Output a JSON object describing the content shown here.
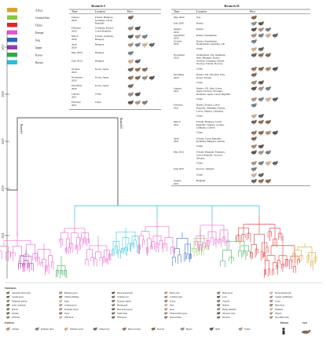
{
  "legend": [
    {
      "label": "Africa",
      "color": "#d6a32e"
    },
    {
      "label": "Central Asia",
      "color": "#8cc63f"
    },
    {
      "label": "China",
      "color": "#e0262f"
    },
    {
      "label": "Europe",
      "color": "#e655c8"
    },
    {
      "label": "Iraq",
      "color": "#2e63b8"
    },
    {
      "label": "Japan",
      "color": "#8b3fb6"
    },
    {
      "label": "Korea",
      "color": "#2eaa4a"
    },
    {
      "label": "Russia",
      "color": "#2bbfd9"
    }
  ],
  "years": [
    "2017",
    "2018",
    "2019",
    "2020",
    "2021"
  ],
  "branch_labels": [
    "Branch I",
    "Branch II"
  ],
  "table1": {
    "title": "Branch I",
    "headers": [
      "Time",
      "Location",
      "Host"
    ],
    "rows": [
      {
        "time": "January 2020",
        "location": "Poland, Hungary, Germany, Czech Republic"
      },
      {
        "time": "February 2020",
        "location": "Germany, Poland, Czech Republic"
      },
      {
        "time": "March 2020",
        "location": "Poland, Germany, Hungary"
      },
      {
        "time": "April 2020",
        "location": "Hungary"
      },
      {
        "time": "May 2020",
        "location": "Hungary"
      },
      {
        "time": "June 2020",
        "location": "Hungary"
      },
      {
        "time": "October 2020",
        "location": "Korea, Japan"
      },
      {
        "time": "November 2020",
        "location": "Korea, Japan"
      },
      {
        "time": "December 2020",
        "location": "Korea, Japan"
      },
      {
        "time": "January 2021",
        "location": "China"
      },
      {
        "time": "February 2021",
        "location": "Japan"
      }
    ]
  },
  "table2": {
    "title": "Branch II",
    "headers": [
      "Time",
      "Location",
      "Host"
    ],
    "rows": [
      {
        "time": "May 2020",
        "location": "Iraq"
      },
      {
        "time": "July 2020",
        "location": "Russia"
      },
      {
        "time": "August 2020",
        "location": "Russia"
      },
      {
        "time": "September 2020",
        "location": "Russia, Kazakhstan"
      },
      {
        "time": "October 2020",
        "location": "Russia, Kazakhstan, Netherlands, Germany, UK"
      },
      {
        "time": "",
        "location": "China"
      },
      {
        "time": "November 2020",
        "location": "Netherlands, UK, Denmark, Italy, Belgium, France, Sweden, Germany, Ireland, Norway, Poland, Norway"
      },
      {
        "time": "",
        "location": "China"
      },
      {
        "time": "December 2020",
        "location": "Russia, UK, Slovakia, Italy, Korea, Poland"
      },
      {
        "time": "",
        "location": "China"
      },
      {
        "time": "January 2021",
        "location": "Russia, UK, Italy, Korea, Spain, Norway, Slovakia, Romania, Japan, Czech Republic"
      },
      {
        "time": "",
        "location": "China"
      },
      {
        "time": "February 2021",
        "location": "Russia, Poland, Czech Republic, Belgium, Austria, Latvia, Nigeria, Lithuania"
      },
      {
        "time": "",
        "location": "China"
      },
      {
        "time": "March 2021",
        "location": "Poland, Hungary, Czech Republic, Nigeria, Croatia, Lithuania, Greece"
      },
      {
        "time": "",
        "location": "China"
      },
      {
        "time": "April 2021",
        "location": "Poland, Czech Republic, Romania, Bulgaria, Austria"
      },
      {
        "time": "",
        "location": "China"
      },
      {
        "time": "May 2021",
        "location": "Poland, Belgium, Romania, Czech Republic, Kosovo, Albania"
      },
      {
        "time": "",
        "location": "China"
      },
      {
        "time": "June 2021",
        "location": "Kosovo, Albania"
      },
      {
        "time": "",
        "location": "China"
      },
      {
        "time": "August 2021",
        "location": "Belgium"
      }
    ]
  },
  "host_legend": {
    "wild_title": "Wild birds",
    "poultry_title": "Poultries",
    "human_title": "Human",
    "seal_title": "Seal",
    "wild": [
      "Australian black swan",
      "Barnacle goose",
      "Black-headed gull",
      "Black swan",
      "Brent goose",
      "Brown-headed gull",
      "Canada goose",
      "Chilean flamingo",
      "Common teal",
      "Common eider",
      "Crow",
      "Cygnus columbianus",
      "Dalmatian pelican",
      "Egret",
      "Eurasian wigeon",
      "Falcon",
      "Gadwall",
      "Goose",
      "Great cormorant",
      "Greylag goose",
      "Herring gull",
      "Knot",
      "Mallard",
      "Mute swan",
      "Pelican",
      "Peregrine falcon",
      "Pink-footed goose",
      "Rook",
      "Ruddy shelduck",
      "Shelduck",
      "Starling",
      "Swan",
      "Tufted duck",
      "White-fronted goose",
      "Whooper swan",
      "Wigeon",
      "Wild bird",
      "Wild duck",
      "Wild goose",
      "Sparrowhawk",
      "Red knot",
      "Spot-billed duck"
    ],
    "poultry": [
      "Chicken",
      "Domestic duck",
      "Domestic goose",
      "Guinea fowl",
      "Muscovy duck",
      "Peacock",
      "Pigeon",
      "Quail",
      "Turkey"
    ]
  }
}
